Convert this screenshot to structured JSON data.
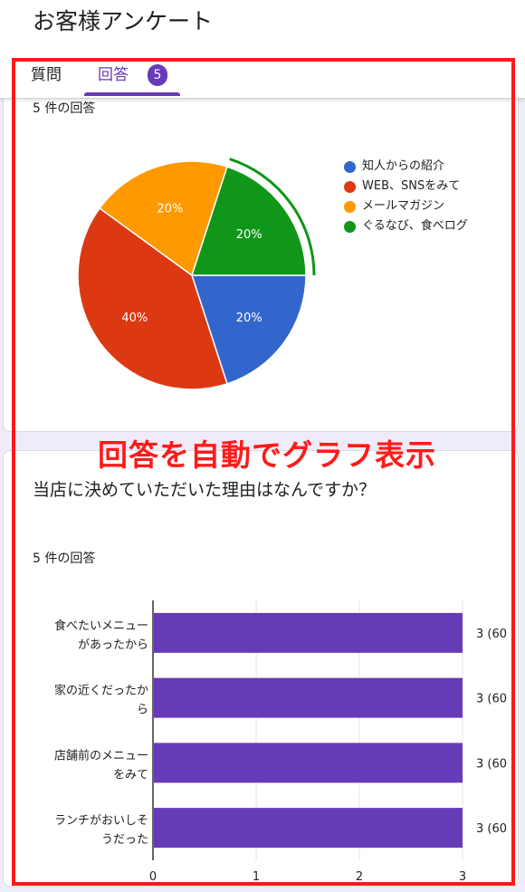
{
  "app": {
    "title": "お客様アンケート"
  },
  "tabs": {
    "questions": "質問",
    "responses": "回答",
    "badge": "5"
  },
  "card1": {
    "count": "5 件の回答",
    "legend": [
      {
        "label": "知人からの紹介",
        "color": "#3366cc"
      },
      {
        "label": "WEB、SNSをみて",
        "color": "#dc3912"
      },
      {
        "label": "メールマガジン",
        "color": "#ff9900"
      },
      {
        "label": "ぐるなび、食べログ",
        "color": "#109618"
      }
    ]
  },
  "card2": {
    "title": "当店に決めていただいた理由はなんですか？",
    "count": "5 件の回答"
  },
  "annotation": "回答を自動でグラフ表示",
  "chart_data": [
    {
      "type": "pie",
      "title": "",
      "categories": [
        "知人からの紹介",
        "WEB、SNSをみて",
        "メールマガジン",
        "ぐるなび、食べログ"
      ],
      "values": [
        20,
        40,
        20,
        20
      ],
      "labels": [
        "20%",
        "40%",
        "20%",
        "20%"
      ],
      "colors": [
        "#3366cc",
        "#dc3912",
        "#ff9900",
        "#109618"
      ],
      "legend": "right"
    },
    {
      "type": "bar",
      "orientation": "horizontal",
      "categories": [
        "食べたいメニューがあったから",
        "家の近くだったから",
        "店舗前のメニューをみて",
        "ランチがおいしそうだった"
      ],
      "category_lines": [
        [
          "食べたいメニュー",
          "があったから"
        ],
        [
          "家の近くだったか",
          "ら"
        ],
        [
          "店舗前のメニュー",
          "をみて"
        ],
        [
          "ランチがおいしそ",
          "うだった"
        ]
      ],
      "values": [
        3,
        3,
        3,
        3
      ],
      "value_labels": [
        "3 (60",
        "3 (60",
        "3 (60",
        "3 (60"
      ],
      "xlim": [
        0,
        3
      ],
      "xticks": [
        "0",
        "1",
        "2",
        "3"
      ],
      "color": "#673ab7",
      "grid": true
    }
  ]
}
